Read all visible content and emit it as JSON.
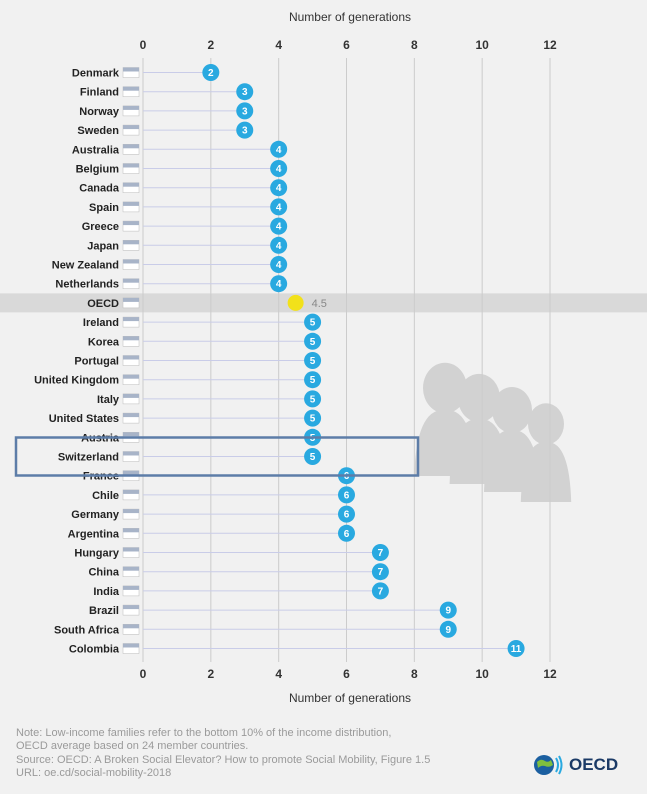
{
  "chart_data": {
    "type": "lollipop",
    "title": "",
    "top_axis_label": "Number of generations",
    "bottom_axis_label": "Number of generations",
    "xlim": [
      0,
      12
    ],
    "xticks": [
      0,
      2,
      4,
      6,
      8,
      10,
      12
    ],
    "categories": [
      "Denmark",
      "Finland",
      "Norway",
      "Sweden",
      "Australia",
      "Belgium",
      "Canada",
      "Spain",
      "Greece",
      "Japan",
      "New Zealand",
      "Netherlands",
      "OECD",
      "Ireland",
      "Korea",
      "Portugal",
      "United Kingdom",
      "Italy",
      "United States",
      "Austria",
      "Switzerland",
      "France",
      "Chile",
      "Germany",
      "Argentina",
      "Hungary",
      "China",
      "India",
      "Brazil",
      "South Africa",
      "Colombia"
    ],
    "values": [
      2,
      3,
      3,
      3,
      4,
      4,
      4,
      4,
      4,
      4,
      4,
      4,
      4.5,
      5,
      5,
      5,
      5,
      5,
      5,
      5,
      5,
      6,
      6,
      6,
      6,
      7,
      7,
      7,
      9,
      9,
      11
    ],
    "value_labels": [
      "2",
      "3",
      "3",
      "3",
      "4",
      "4",
      "4",
      "4",
      "4",
      "4",
      "4",
      "4",
      "4.5",
      "5",
      "5",
      "5",
      "5",
      "5",
      "5",
      "5",
      "5",
      "6",
      "6",
      "6",
      "6",
      "7",
      "7",
      "7",
      "9",
      "9",
      "11"
    ],
    "highlighted_average": "OECD",
    "highlighted_box": "Switzerland"
  },
  "notes": [
    "Note: Low-income families refer to the bottom 10% of the income distribution,",
    "OECD average based on 24 member countries.",
    "Source: OECD: A Broken Social Elevator? How to promote Social Mobility, Figure 1.5",
    "URL: oe.cd/social-mobility-2018"
  ],
  "logo": {
    "text": "OECD"
  },
  "colors": {
    "marker": "#29a9e0",
    "average_marker": "#f2e11a",
    "average_band": "#d9d9d9",
    "stem": "#c9cce8",
    "gridline": "#cccccc",
    "highlight_box": "#5d7da8",
    "silhouette": "#d2d2d2"
  }
}
